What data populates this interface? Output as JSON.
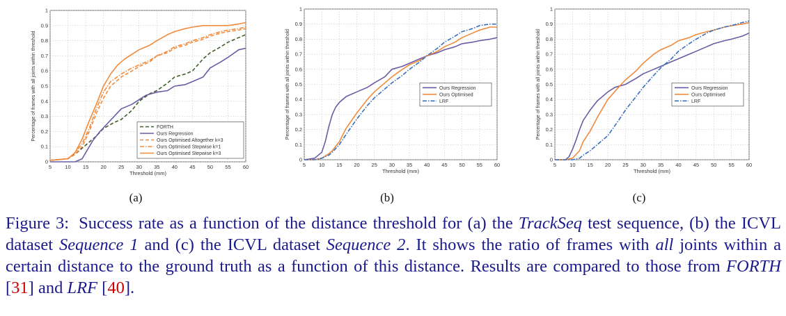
{
  "chart_data": [
    {
      "type": "line",
      "sublabel": "(a)",
      "xlabel": "Threshold (mm)",
      "ylabel": "Percentage of frames with all joints within threshold",
      "xlim": [
        5,
        60
      ],
      "ylim": [
        0,
        1
      ],
      "xticks": [
        5,
        10,
        15,
        20,
        25,
        30,
        35,
        40,
        45,
        50,
        55,
        60
      ],
      "yticks": [
        0,
        0.1,
        0.2,
        0.3,
        0.4,
        0.5,
        0.6,
        0.7,
        0.8,
        0.9,
        1
      ],
      "grid": true,
      "legend_position": "lower-right",
      "series": [
        {
          "name": "FORTH",
          "color": "#3f5f2a",
          "dash": "dashed",
          "x": [
            5,
            10,
            12,
            15,
            18,
            20,
            23,
            25,
            28,
            30,
            33,
            35,
            38,
            40,
            43,
            45,
            48,
            50,
            53,
            55,
            58,
            60
          ],
          "y": [
            0.01,
            0.02,
            0.05,
            0.11,
            0.17,
            0.22,
            0.26,
            0.28,
            0.34,
            0.4,
            0.45,
            0.47,
            0.52,
            0.56,
            0.58,
            0.6,
            0.68,
            0.72,
            0.76,
            0.79,
            0.82,
            0.84
          ]
        },
        {
          "name": "Ours Regression",
          "color": "#6b5ba4",
          "dash": "solid",
          "x": [
            5,
            10,
            12,
            14,
            15,
            17,
            19,
            21,
            23,
            25,
            28,
            30,
            32,
            35,
            38,
            40,
            43,
            45,
            48,
            50,
            53,
            55,
            58,
            60
          ],
          "y": [
            0,
            0,
            0,
            0.02,
            0.06,
            0.14,
            0.2,
            0.25,
            0.3,
            0.35,
            0.38,
            0.41,
            0.44,
            0.46,
            0.47,
            0.5,
            0.51,
            0.53,
            0.56,
            0.62,
            0.66,
            0.69,
            0.74,
            0.75
          ]
        },
        {
          "name": "Ours Optimised Altogether k=3",
          "color": "#f08a3c",
          "dash": "dashed",
          "x": [
            5,
            10,
            12,
            14,
            16,
            18,
            20,
            22,
            25,
            28,
            30,
            33,
            35,
            38,
            40,
            43,
            45,
            48,
            50,
            53,
            55,
            58,
            60
          ],
          "y": [
            0.01,
            0.02,
            0.05,
            0.1,
            0.2,
            0.32,
            0.42,
            0.5,
            0.56,
            0.6,
            0.63,
            0.66,
            0.7,
            0.72,
            0.75,
            0.77,
            0.79,
            0.81,
            0.83,
            0.85,
            0.86,
            0.87,
            0.88
          ]
        },
        {
          "name": "Ours Optimised Stepwise k=1",
          "color": "#f08a3c",
          "dash": "dashdot",
          "x": [
            5,
            10,
            12,
            14,
            16,
            18,
            20,
            22,
            25,
            28,
            30,
            33,
            35,
            38,
            40,
            43,
            45,
            48,
            50,
            53,
            55,
            58,
            60
          ],
          "y": [
            0.01,
            0.02,
            0.06,
            0.12,
            0.22,
            0.35,
            0.46,
            0.53,
            0.58,
            0.62,
            0.64,
            0.67,
            0.7,
            0.73,
            0.76,
            0.78,
            0.8,
            0.82,
            0.84,
            0.86,
            0.87,
            0.88,
            0.89
          ]
        },
        {
          "name": "Ours Optimised Stepwise k=3",
          "color": "#f08a3c",
          "dash": "solid",
          "x": [
            5,
            10,
            12,
            14,
            16,
            18,
            20,
            22,
            24,
            26,
            28,
            30,
            33,
            35,
            38,
            40,
            43,
            45,
            48,
            50,
            53,
            55,
            58,
            60
          ],
          "y": [
            0.01,
            0.02,
            0.06,
            0.15,
            0.27,
            0.38,
            0.5,
            0.58,
            0.64,
            0.68,
            0.71,
            0.74,
            0.77,
            0.8,
            0.84,
            0.86,
            0.88,
            0.89,
            0.9,
            0.9,
            0.9,
            0.9,
            0.91,
            0.92
          ]
        }
      ]
    },
    {
      "type": "line",
      "sublabel": "(b)",
      "xlabel": "Threshold (mm)",
      "ylabel": "Percentage of frames with all joints within threshold",
      "xlim": [
        5,
        60
      ],
      "ylim": [
        0,
        1
      ],
      "xticks": [
        5,
        10,
        15,
        20,
        25,
        30,
        35,
        40,
        45,
        50,
        55,
        60
      ],
      "yticks": [
        0,
        0.1,
        0.2,
        0.3,
        0.4,
        0.5,
        0.6,
        0.7,
        0.8,
        0.9,
        1
      ],
      "grid": true,
      "legend_position": "middle-right",
      "series": [
        {
          "name": "Ours Regression",
          "color": "#6b5ba4",
          "dash": "solid",
          "x": [
            5,
            8,
            10,
            11,
            12,
            13,
            14,
            15,
            17,
            20,
            23,
            25,
            28,
            30,
            33,
            35,
            38,
            40,
            43,
            45,
            48,
            50,
            53,
            55,
            58,
            60
          ],
          "y": [
            0,
            0.01,
            0.05,
            0.12,
            0.22,
            0.3,
            0.35,
            0.38,
            0.42,
            0.45,
            0.48,
            0.51,
            0.55,
            0.6,
            0.62,
            0.64,
            0.67,
            0.69,
            0.71,
            0.73,
            0.75,
            0.77,
            0.78,
            0.79,
            0.8,
            0.81
          ]
        },
        {
          "name": "Ours Optimised",
          "color": "#f08a3c",
          "dash": "solid",
          "x": [
            5,
            8,
            10,
            12,
            13,
            15,
            17,
            20,
            23,
            25,
            28,
            30,
            33,
            35,
            38,
            40,
            43,
            45,
            48,
            50,
            53,
            55,
            58,
            60
          ],
          "y": [
            0,
            0,
            0.01,
            0.04,
            0.06,
            0.12,
            0.21,
            0.31,
            0.4,
            0.45,
            0.51,
            0.55,
            0.6,
            0.63,
            0.66,
            0.69,
            0.72,
            0.75,
            0.78,
            0.81,
            0.84,
            0.86,
            0.88,
            0.88
          ]
        },
        {
          "name": "LRF",
          "color": "#3a6fbe",
          "dash": "dashdot",
          "x": [
            5,
            8,
            10,
            12,
            13,
            15,
            17,
            20,
            23,
            25,
            28,
            30,
            33,
            35,
            38,
            40,
            43,
            45,
            48,
            50,
            53,
            55,
            58,
            60
          ],
          "y": [
            0,
            0,
            0.01,
            0.03,
            0.05,
            0.1,
            0.17,
            0.27,
            0.36,
            0.41,
            0.47,
            0.51,
            0.56,
            0.6,
            0.65,
            0.69,
            0.74,
            0.78,
            0.82,
            0.85,
            0.87,
            0.89,
            0.9,
            0.9
          ]
        }
      ]
    },
    {
      "type": "line",
      "sublabel": "(c)",
      "xlabel": "Threshold (mm)",
      "ylabel": "Percentage of frames with all joints within threshold",
      "xlim": [
        5,
        60
      ],
      "ylim": [
        0,
        1
      ],
      "xticks": [
        5,
        10,
        15,
        20,
        25,
        30,
        35,
        40,
        45,
        50,
        55,
        60
      ],
      "yticks": [
        0,
        0.1,
        0.2,
        0.3,
        0.4,
        0.5,
        0.6,
        0.7,
        0.8,
        0.9,
        1
      ],
      "grid": true,
      "legend_position": "middle-right",
      "series": [
        {
          "name": "Ours Regression",
          "color": "#6b5ba4",
          "dash": "solid",
          "x": [
            5,
            8,
            9,
            10,
            11,
            12,
            13,
            15,
            17,
            20,
            22,
            25,
            28,
            30,
            33,
            35,
            38,
            40,
            43,
            45,
            48,
            50,
            53,
            55,
            58,
            60
          ],
          "y": [
            0,
            0,
            0.02,
            0.07,
            0.13,
            0.2,
            0.26,
            0.33,
            0.39,
            0.45,
            0.48,
            0.5,
            0.54,
            0.57,
            0.6,
            0.62,
            0.65,
            0.67,
            0.7,
            0.72,
            0.75,
            0.77,
            0.79,
            0.8,
            0.82,
            0.84
          ]
        },
        {
          "name": "Ours Optimised",
          "color": "#f08a3c",
          "dash": "solid",
          "x": [
            5,
            8,
            10,
            12,
            13,
            15,
            17,
            20,
            23,
            25,
            28,
            30,
            33,
            35,
            38,
            40,
            43,
            45,
            48,
            50,
            53,
            55,
            58,
            60
          ],
          "y": [
            0,
            0,
            0.01,
            0.06,
            0.12,
            0.19,
            0.28,
            0.4,
            0.48,
            0.53,
            0.59,
            0.64,
            0.7,
            0.73,
            0.76,
            0.79,
            0.81,
            0.83,
            0.85,
            0.86,
            0.88,
            0.89,
            0.9,
            0.91
          ]
        },
        {
          "name": "LRF",
          "color": "#3a6fbe",
          "dash": "dashdot",
          "x": [
            5,
            8,
            10,
            12,
            13,
            15,
            17,
            20,
            23,
            25,
            28,
            30,
            33,
            35,
            38,
            40,
            43,
            45,
            48,
            50,
            53,
            55,
            58,
            60
          ],
          "y": [
            0,
            0,
            0,
            0.01,
            0.03,
            0.06,
            0.1,
            0.16,
            0.26,
            0.33,
            0.42,
            0.48,
            0.56,
            0.61,
            0.67,
            0.72,
            0.77,
            0.8,
            0.84,
            0.86,
            0.88,
            0.89,
            0.91,
            0.92
          ]
        }
      ]
    }
  ],
  "caption": {
    "label": "Figure 3:",
    "s1": "Success rate as a function of the distance threshold for (a) the ",
    "i1": "TrackSeq",
    "s2": " test sequence, (b) the ICVL dataset ",
    "i2": "Sequence 1",
    "s3": " and (c) the ICVL dataset ",
    "i3": "Sequence 2",
    "s4": ". It shows the ratio of frames with ",
    "i4": "all",
    "s5": " joints within a certain distance to the ground truth as a function of this distance. Results are compared to those from ",
    "i5": "FORTH",
    "s6": " [",
    "r1": "31",
    "s7": "] and ",
    "i6": "LRF",
    "s8": " [",
    "r2": "40",
    "s9": "]."
  }
}
